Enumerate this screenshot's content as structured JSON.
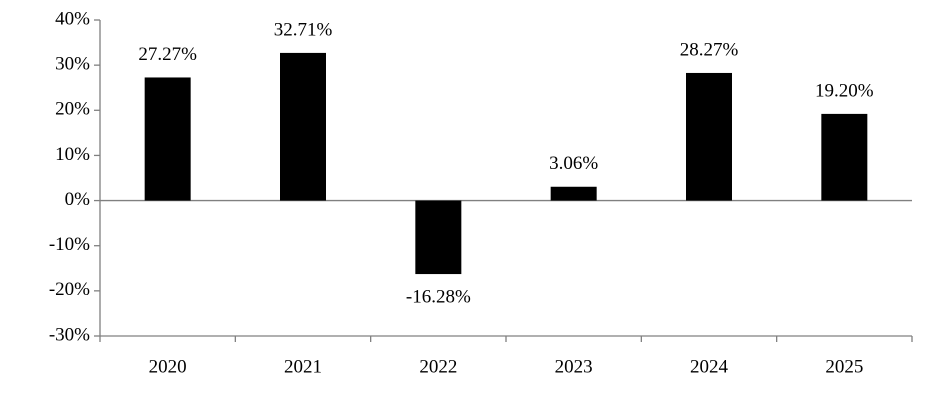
{
  "chart_data": {
    "type": "bar",
    "categories": [
      "2020",
      "2021",
      "2022",
      "2023",
      "2024",
      "2025"
    ],
    "values": [
      27.27,
      32.71,
      -16.28,
      3.06,
      28.27,
      19.2
    ],
    "value_labels": [
      "27.27%",
      "32.71%",
      "-16.28%",
      "3.06%",
      "28.27%",
      "19.20%"
    ],
    "color": "#000000",
    "ylim": [
      -30,
      40
    ],
    "yticks": [
      {
        "value": -30,
        "label": "-30%"
      },
      {
        "value": -20,
        "label": "-20%"
      },
      {
        "value": -10,
        "label": "-10%"
      },
      {
        "value": 0,
        "label": "0%"
      },
      {
        "value": 10,
        "label": "10%"
      },
      {
        "value": 20,
        "label": "20%"
      },
      {
        "value": 30,
        "label": "30%"
      },
      {
        "value": 40,
        "label": "40%"
      }
    ]
  }
}
